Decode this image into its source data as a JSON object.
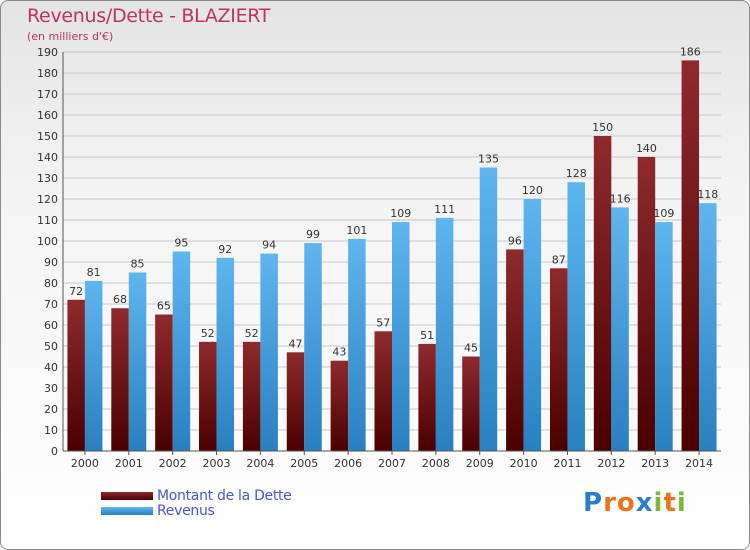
{
  "title": "Revenus/Dette - BLAZIERT",
  "subtitle": "(en milliers d'€)",
  "legend": {
    "dette_label": "Montant de la Dette",
    "revenus_label": "Revenus"
  },
  "logo": {
    "letters": [
      "P",
      "r",
      "o",
      "x",
      "i",
      "t",
      "i"
    ],
    "colors": [
      "#2b7fc9",
      "#e8751a",
      "#e8751a",
      "#2b7fc9",
      "#7ab934",
      "#e8751a",
      "#7ab934"
    ]
  },
  "colors": {
    "dette": "#7a1e22",
    "revenus": "#3a9ee0"
  },
  "chart_data": {
    "type": "bar",
    "categories": [
      "2000",
      "2001",
      "2002",
      "2003",
      "2004",
      "2005",
      "2006",
      "2007",
      "2008",
      "2009",
      "2010",
      "2011",
      "2012",
      "2013",
      "2014"
    ],
    "series": [
      {
        "name": "Montant de la Dette",
        "values": [
          72,
          68,
          65,
          52,
          52,
          47,
          43,
          57,
          51,
          45,
          96,
          87,
          150,
          140,
          186
        ]
      },
      {
        "name": "Revenus",
        "values": [
          81,
          85,
          95,
          92,
          94,
          99,
          101,
          109,
          111,
          135,
          120,
          128,
          116,
          109,
          118
        ]
      }
    ],
    "ylim": [
      0,
      190
    ],
    "yticks": [
      0,
      10,
      20,
      30,
      40,
      50,
      60,
      70,
      80,
      90,
      100,
      110,
      120,
      130,
      140,
      150,
      160,
      170,
      180,
      190
    ],
    "grid": true,
    "legend_position": "bottom-left"
  }
}
